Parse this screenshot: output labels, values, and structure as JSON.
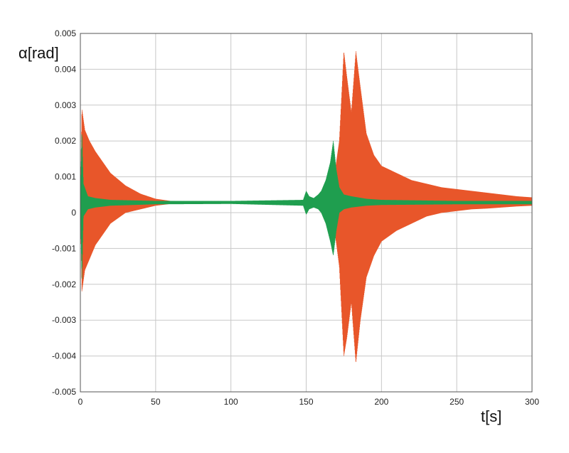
{
  "chart_data": {
    "type": "line",
    "xlabel": "t[s]",
    "ylabel": "α[rad]",
    "xlim": [
      0,
      300
    ],
    "ylim": [
      -0.005,
      0.005
    ],
    "x_ticks": [
      0,
      50,
      100,
      150,
      200,
      250,
      300
    ],
    "x_tick_labels": [
      "0",
      "50",
      "100",
      "150",
      "200",
      "250",
      "300"
    ],
    "y_ticks": [
      -0.005,
      -0.004,
      -0.003,
      -0.002,
      -0.001,
      0,
      0.001,
      0.002,
      0.003,
      0.004,
      0.005
    ],
    "y_tick_labels": [
      "-0.005",
      "-0.004",
      "-0.003",
      "-0.002",
      "-0.001",
      "0",
      "0.001",
      "0.002",
      "0.003",
      "0.004",
      "0.005"
    ],
    "grid": true,
    "series": [
      {
        "color": "#e8562a",
        "envelope": {
          "t": [
            0,
            1,
            3,
            6,
            10,
            15,
            20,
            30,
            40,
            50,
            60,
            70,
            80,
            100,
            150,
            160,
            165,
            168,
            172,
            175,
            177,
            180,
            183,
            186,
            190,
            195,
            200,
            210,
            220,
            230,
            240,
            250,
            260,
            270,
            280,
            290,
            300
          ],
          "upper": [
            0.0003,
            0.0029,
            0.0023,
            0.002,
            0.0017,
            0.0014,
            0.0011,
            0.00075,
            0.00052,
            0.00038,
            0.00032,
            0.0003,
            0.00029,
            0.00029,
            0.0003,
            0.00032,
            0.0004,
            0.0008,
            0.002,
            0.0045,
            0.0038,
            0.0028,
            0.0045,
            0.0035,
            0.0022,
            0.0016,
            0.0013,
            0.0011,
            0.0009,
            0.0008,
            0.0007,
            0.00065,
            0.0006,
            0.00055,
            0.0005,
            0.00045,
            0.00042
          ],
          "lower": [
            0.0003,
            -0.0022,
            -0.0016,
            -0.0013,
            -0.0009,
            -0.0006,
            -0.0003,
            0.0,
            0.0001,
            0.0002,
            0.00025,
            0.00028,
            0.00029,
            0.00029,
            0.00028,
            0.00025,
            0.0002,
            -0.0002,
            -0.0015,
            -0.004,
            -0.0035,
            -0.0025,
            -0.0042,
            -0.003,
            -0.0018,
            -0.0012,
            -0.0008,
            -0.0005,
            -0.0003,
            -0.0001,
            0.0,
            5e-05,
            0.0001,
            0.00012,
            0.00015,
            0.00018,
            0.0002
          ]
        }
      },
      {
        "color": "#1f9e4f",
        "envelope": {
          "t": [
            0,
            1,
            2,
            5,
            10,
            20,
            50,
            100,
            148,
            150,
            152,
            155,
            158,
            160,
            163,
            166,
            168,
            170,
            172,
            175,
            180,
            190,
            200,
            250,
            300
          ],
          "upper": [
            0.0003,
            0.0023,
            0.0008,
            0.00045,
            0.0004,
            0.00035,
            0.00032,
            0.00032,
            0.00035,
            0.0006,
            0.00045,
            0.0004,
            0.0005,
            0.0006,
            0.0009,
            0.0014,
            0.002,
            0.0012,
            0.0007,
            0.0005,
            0.00045,
            0.00038,
            0.00035,
            0.00032,
            0.00032
          ],
          "lower": [
            0.0003,
            -0.0019,
            -0.0001,
            0.0001,
            0.00015,
            0.0002,
            0.00024,
            0.00025,
            0.0002,
            -5e-05,
            0.0001,
            0.00015,
            0.0001,
            0.0,
            -0.0003,
            -0.0008,
            -0.0012,
            -0.0005,
            0.0,
            0.0001,
            0.00015,
            0.0002,
            0.00022,
            0.00024,
            0.00024
          ]
        }
      }
    ]
  }
}
